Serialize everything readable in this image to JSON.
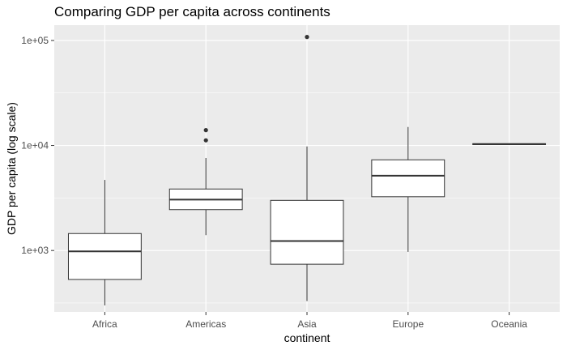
{
  "chart_data": {
    "type": "boxplot",
    "title": "Comparing GDP per capita across continents",
    "xlabel": "continent",
    "ylabel": "GDP per capita (log scale)",
    "y_scale": "log10",
    "ylim": [
      260,
      140000
    ],
    "y_ticks": [
      1000,
      10000,
      100000
    ],
    "y_tick_labels": [
      "1e+03",
      "1e+04",
      "1e+05"
    ],
    "categories": [
      "Africa",
      "Americas",
      "Asia",
      "Europe",
      "Oceania"
    ],
    "boxes": [
      {
        "category": "Africa",
        "whisker_low": 300,
        "q1": 530,
        "median": 980,
        "q3": 1450,
        "whisker_high": 4700,
        "outliers": []
      },
      {
        "category": "Americas",
        "whisker_low": 1400,
        "q1": 2450,
        "median": 3050,
        "q3": 3850,
        "whisker_high": 7600,
        "outliers": [
          11200,
          14000
        ]
      },
      {
        "category": "Asia",
        "whisker_low": 330,
        "q1": 740,
        "median": 1230,
        "q3": 3000,
        "whisker_high": 9800,
        "outliers": [
          108000
        ]
      },
      {
        "category": "Europe",
        "whisker_low": 970,
        "q1": 3250,
        "median": 5150,
        "q3": 7300,
        "whisker_high": 15000,
        "outliers": []
      },
      {
        "category": "Oceania",
        "whisker_low": 10200,
        "q1": 10200,
        "median": 10300,
        "q3": 10400,
        "whisker_high": 10400,
        "outliers": []
      }
    ],
    "grid": true,
    "legend": "none",
    "colors": {
      "panel_background": "#ebebeb",
      "grid_line": "#ffffff",
      "box_fill": "#ffffff",
      "box_line": "#333333",
      "outlier": "#333333",
      "tick_label": "#4d4d4d",
      "tick_mark": "#333333"
    }
  }
}
